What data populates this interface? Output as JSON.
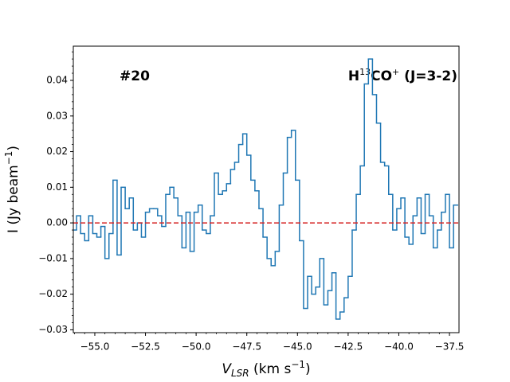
{
  "chart_data": {
    "type": "step",
    "annotations": [
      {
        "text": [
          "#20"
        ]
      },
      {
        "text": [
          "H",
          "13",
          "CO",
          "+",
          " (J=3-2)"
        ]
      }
    ],
    "xlabel": [
      "V",
      "LSR",
      " (km s",
      "−1",
      ")"
    ],
    "ylabel": [
      "I (Jy beam",
      "−1",
      ")"
    ],
    "x": [
      -56.0,
      -55.8,
      -55.6,
      -55.4,
      -55.2,
      -55.0,
      -54.8,
      -54.6,
      -54.4,
      -54.2,
      -54.0,
      -53.8,
      -53.6,
      -53.4,
      -53.2,
      -53.0,
      -52.8,
      -52.6,
      -52.4,
      -52.2,
      -52.0,
      -51.8,
      -51.6,
      -51.4,
      -51.2,
      -51.0,
      -50.8,
      -50.6,
      -50.4,
      -50.2,
      -50.0,
      -49.8,
      -49.6,
      -49.4,
      -49.2,
      -49.0,
      -48.8,
      -48.6,
      -48.4,
      -48.2,
      -48.0,
      -47.8,
      -47.6,
      -47.4,
      -47.2,
      -47.0,
      -46.8,
      -46.6,
      -46.4,
      -46.2,
      -46.0,
      -45.8,
      -45.6,
      -45.4,
      -45.2,
      -45.0,
      -44.8,
      -44.6,
      -44.4,
      -44.2,
      -44.0,
      -43.8,
      -43.6,
      -43.4,
      -43.2,
      -43.0,
      -42.8,
      -42.6,
      -42.4,
      -42.2,
      -42.0,
      -41.8,
      -41.6,
      -41.4,
      -41.2,
      -41.0,
      -40.8,
      -40.6,
      -40.4,
      -40.2,
      -40.0,
      -39.8,
      -39.6,
      -39.4,
      -39.2,
      -39.0,
      -38.8,
      -38.6,
      -38.4,
      -38.2,
      -38.0,
      -37.8,
      -37.6,
      -37.4,
      -37.2
    ],
    "series": [
      {
        "color": "#1f77b4",
        "values": [
          -0.002,
          0.002,
          -0.003,
          -0.005,
          0.002,
          -0.003,
          -0.004,
          -0.001,
          -0.01,
          -0.003,
          0.012,
          -0.009,
          0.01,
          0.004,
          0.007,
          -0.002,
          0.0,
          -0.004,
          0.003,
          0.004,
          0.004,
          0.002,
          -0.001,
          0.008,
          0.01,
          0.007,
          0.002,
          -0.007,
          0.003,
          -0.008,
          0.003,
          0.005,
          -0.002,
          -0.003,
          0.002,
          0.014,
          0.008,
          0.009,
          0.011,
          0.015,
          0.017,
          0.022,
          0.025,
          0.019,
          0.012,
          0.009,
          0.004,
          -0.004,
          -0.01,
          -0.012,
          -0.008,
          0.005,
          0.014,
          0.024,
          0.026,
          0.012,
          -0.005,
          -0.024,
          -0.015,
          -0.02,
          -0.018,
          -0.01,
          -0.023,
          -0.019,
          -0.014,
          -0.027,
          -0.025,
          -0.021,
          -0.015,
          -0.002,
          0.008,
          0.016,
          0.039,
          0.046,
          0.036,
          0.028,
          0.017,
          0.016,
          0.008,
          -0.002,
          0.004,
          0.007,
          -0.004,
          -0.006,
          0.002,
          0.007,
          -0.003,
          0.008,
          0.002,
          -0.007,
          -0.002,
          0.003,
          0.008,
          -0.007,
          0.005
        ]
      }
    ],
    "reference_line": {
      "value": 0,
      "color": "#d62728"
    },
    "xlim": [
      -56.06,
      -37.03
    ],
    "ylim": [
      -0.0308,
      0.0496
    ],
    "xticks": [
      {
        "value": -55,
        "label": "−55.0"
      },
      {
        "value": -52.5,
        "label": "−52.5"
      },
      {
        "value": -50,
        "label": "−50.0"
      },
      {
        "value": -47.5,
        "label": "−47.5"
      },
      {
        "value": -45,
        "label": "−45.0"
      },
      {
        "value": -42.5,
        "label": "−42.5"
      },
      {
        "value": -40,
        "label": "−40.0"
      },
      {
        "value": -37.5,
        "label": "−37.5"
      }
    ],
    "yticks": [
      {
        "value": -0.03,
        "label": "−0.03"
      },
      {
        "value": -0.02,
        "label": "−0.02"
      },
      {
        "value": -0.01,
        "label": "−0.01"
      },
      {
        "value": 0,
        "label": "0.00"
      },
      {
        "value": 0.01,
        "label": "0.01"
      },
      {
        "value": 0.02,
        "label": "0.02"
      },
      {
        "value": 0.03,
        "label": "0.03"
      },
      {
        "value": 0.04,
        "label": "0.04"
      }
    ],
    "minor_divisions": 5,
    "grid": false
  }
}
